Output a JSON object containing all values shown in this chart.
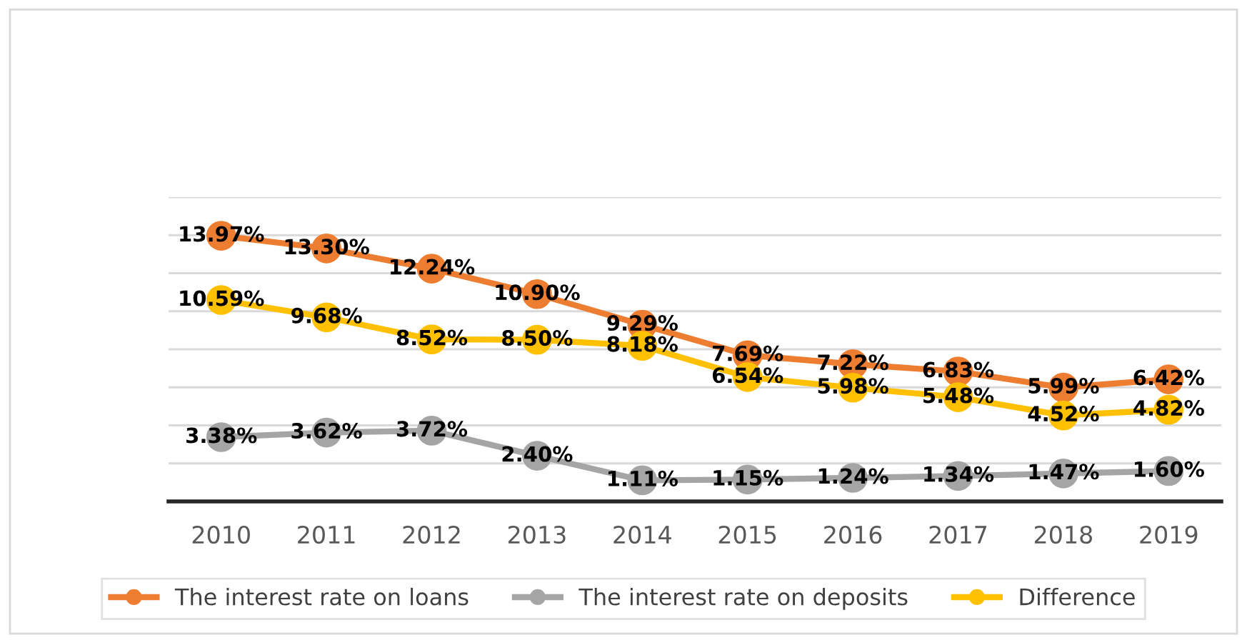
{
  "chart_data": {
    "type": "line",
    "categories": [
      "2010",
      "2011",
      "2012",
      "2013",
      "2014",
      "2015",
      "2016",
      "2017",
      "2018",
      "2019"
    ],
    "series": [
      {
        "name": "The interest rate on loans",
        "color": "#ed7d31",
        "values": [
          13.97,
          13.3,
          12.24,
          10.9,
          9.29,
          7.69,
          7.22,
          6.83,
          5.99,
          6.42
        ],
        "value_labels": [
          "13.97%",
          "13.30%",
          "12.24%",
          "10.90%",
          "9.29%",
          "7.69%",
          "7.22%",
          "6.83%",
          "5.99%",
          "6.42%"
        ]
      },
      {
        "name": "The interest rate on deposits",
        "color": "#a5a5a5",
        "values": [
          3.38,
          3.62,
          3.72,
          2.4,
          1.11,
          1.15,
          1.24,
          1.34,
          1.47,
          1.6
        ],
        "value_labels": [
          "3.38%",
          "3.62%",
          "3.72%",
          "2.40%",
          "1.11%",
          "1.15%",
          "1.24%",
          "1.34%",
          "1.47%",
          "1.60%"
        ]
      },
      {
        "name": "Difference",
        "color": "#ffc000",
        "values": [
          10.59,
          9.68,
          8.52,
          8.5,
          8.18,
          6.54,
          5.98,
          5.48,
          4.52,
          4.82
        ],
        "value_labels": [
          "10.59%",
          "9.68%",
          "8.52%",
          "8.50%",
          "8.18%",
          "6.54%",
          "5.98%",
          "5.48%",
          "4.52%",
          "4.82%"
        ]
      }
    ],
    "ylim": [
      0,
      16
    ],
    "yticks": [
      {
        "value": 0,
        "label": null
      },
      {
        "value": 2,
        "label": null
      },
      {
        "value": 4,
        "label": null
      },
      {
        "value": 6,
        "label": null
      },
      {
        "value": 8,
        "label": null
      },
      {
        "value": 10,
        "label": null
      },
      {
        "value": 12,
        "label": null
      },
      {
        "value": 14,
        "label": null
      },
      {
        "value": 16,
        "label": null
      }
    ],
    "tick_labels": "x",
    "grid": "y",
    "legend": "bottom",
    "marker": "circle",
    "line_style": "solid"
  }
}
